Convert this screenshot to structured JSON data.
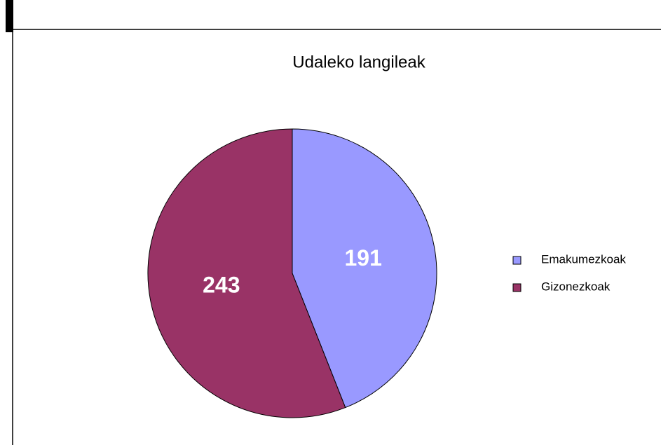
{
  "chart_data": {
    "type": "pie",
    "title": "Udaleko langileak",
    "categories": [
      "Emakumezkoak",
      "Gizonezkoak"
    ],
    "values": [
      191,
      243
    ],
    "colors": [
      "#9999ff",
      "#993366"
    ],
    "legend": "right"
  }
}
